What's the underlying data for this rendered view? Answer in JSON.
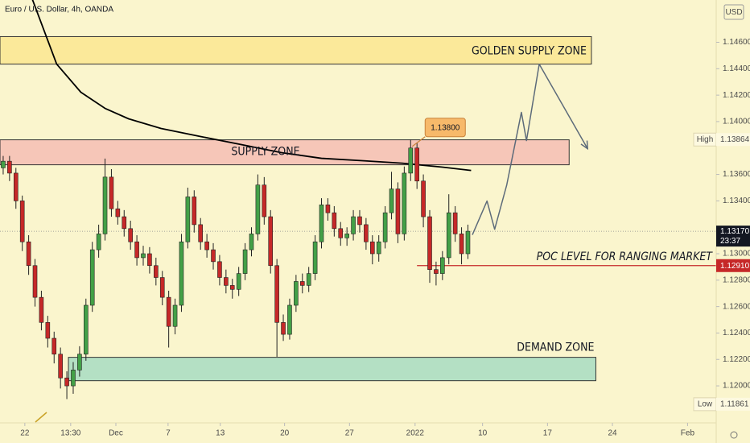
{
  "chart_data": {
    "type": "candlestick",
    "title": "Euro / U.S. Dollar, 4h, OANDA",
    "currency": "USD",
    "ylim": [
      1.1172,
      1.1492
    ],
    "yticks": [
      {
        "value": 1.146,
        "label": "1.14600"
      },
      {
        "value": 1.144,
        "label": "1.14400"
      },
      {
        "value": 1.142,
        "label": "1.14200"
      },
      {
        "value": 1.14,
        "label": "1.14000"
      },
      {
        "value": 1.136,
        "label": "1.13600"
      },
      {
        "value": 1.134,
        "label": "1.13400"
      },
      {
        "value": 1.13,
        "label": "1.13000"
      },
      {
        "value": 1.128,
        "label": "1.12800"
      },
      {
        "value": 1.126,
        "label": "1.12600"
      },
      {
        "value": 1.124,
        "label": "1.12400"
      },
      {
        "value": 1.122,
        "label": "1.12200"
      },
      {
        "value": 1.12,
        "label": "1.12000"
      }
    ],
    "xlim": [
      -0.5,
      112
    ],
    "xticks": [
      {
        "value": 3.4,
        "label": "22"
      },
      {
        "value": 10.6,
        "label": "13:30"
      },
      {
        "value": 17.7,
        "label": "Dec"
      },
      {
        "value": 25.9,
        "label": "7"
      },
      {
        "value": 34.1,
        "label": "13"
      },
      {
        "value": 44.2,
        "label": "20"
      },
      {
        "value": 54.4,
        "label": "27"
      },
      {
        "value": 64.7,
        "label": "2022"
      },
      {
        "value": 75.3,
        "label": "10"
      },
      {
        "value": 85.5,
        "label": "17"
      },
      {
        "value": 95.7,
        "label": "24"
      },
      {
        "value": 107.5,
        "label": "Feb"
      }
    ],
    "grid": false,
    "up_color": "#43a047",
    "down_color": "#c62828",
    "candles": {
      "open": [
        1.1365,
        1.137,
        1.1361,
        1.134,
        1.1309,
        1.1291,
        1.1267,
        1.1248,
        1.1236,
        1.1224,
        1.1206,
        1.12,
        1.1212,
        1.1224,
        1.1261,
        1.1303,
        1.1315,
        1.1358,
        1.1334,
        1.1328,
        1.1319,
        1.1309,
        1.1297,
        1.13,
        1.1291,
        1.1282,
        1.1267,
        1.1245,
        1.1261,
        1.1309,
        1.1343,
        1.1322,
        1.1309,
        1.1303,
        1.1294,
        1.1282,
        1.1276,
        1.1273,
        1.1285,
        1.1303,
        1.1315,
        1.1352,
        1.1328,
        1.1291,
        1.1248,
        1.1239,
        1.1261,
        1.1279,
        1.1276,
        1.1285,
        1.1309,
        1.1337,
        1.1331,
        1.1319,
        1.1312,
        1.1315,
        1.1328,
        1.1322,
        1.1309,
        1.13,
        1.1309,
        1.1331,
        1.1349,
        1.1315,
        1.1361,
        1.138,
        1.1355,
        1.1328,
        1.1288,
        1.1285,
        1.1297,
        1.1331,
        1.1315,
        1.13
      ],
      "high": [
        1.1374,
        1.1374,
        1.1365,
        1.1344,
        1.1314,
        1.1296,
        1.1272,
        1.1253,
        1.1241,
        1.1229,
        1.1211,
        1.1218,
        1.123,
        1.1266,
        1.1309,
        1.1322,
        1.1372,
        1.1364,
        1.134,
        1.1333,
        1.1325,
        1.1314,
        1.1306,
        1.1305,
        1.1297,
        1.1287,
        1.1272,
        1.1266,
        1.1315,
        1.135,
        1.1348,
        1.1327,
        1.1315,
        1.1308,
        1.1299,
        1.1288,
        1.1281,
        1.129,
        1.1308,
        1.132,
        1.136,
        1.1358,
        1.1333,
        1.1296,
        1.1254,
        1.1266,
        1.1284,
        1.1285,
        1.129,
        1.1314,
        1.1342,
        1.1342,
        1.1336,
        1.1324,
        1.132,
        1.1333,
        1.1333,
        1.1327,
        1.1314,
        1.1314,
        1.1336,
        1.1362,
        1.1354,
        1.1366,
        1.13864,
        1.1384,
        1.136,
        1.1333,
        1.1294,
        1.1302,
        1.1345,
        1.1336,
        1.132,
        1.1322
      ],
      "low": [
        1.136,
        1.1355,
        1.1334,
        1.1302,
        1.1284,
        1.126,
        1.1242,
        1.1229,
        1.1217,
        1.1198,
        1.119,
        1.1194,
        1.1207,
        1.1219,
        1.1256,
        1.1297,
        1.131,
        1.1328,
        1.1322,
        1.1313,
        1.1303,
        1.1291,
        1.1291,
        1.1285,
        1.1276,
        1.1261,
        1.1229,
        1.1239,
        1.1256,
        1.1304,
        1.1316,
        1.1303,
        1.1297,
        1.1288,
        1.1276,
        1.127,
        1.1266,
        1.1268,
        1.128,
        1.1298,
        1.131,
        1.1322,
        1.1285,
        1.1222,
        1.1234,
        1.1235,
        1.1256,
        1.127,
        1.1271,
        1.128,
        1.1304,
        1.1325,
        1.1313,
        1.1306,
        1.1306,
        1.131,
        1.1316,
        1.1303,
        1.1292,
        1.1294,
        1.1304,
        1.1326,
        1.1308,
        1.131,
        1.1355,
        1.1349,
        1.132,
        1.1278,
        1.1276,
        1.128,
        1.1292,
        1.1309,
        1.1292,
        1.1296
      ],
      "close": [
        1.137,
        1.1361,
        1.134,
        1.1309,
        1.1291,
        1.1267,
        1.1248,
        1.1236,
        1.1224,
        1.1206,
        1.12,
        1.1212,
        1.1224,
        1.1261,
        1.1303,
        1.1315,
        1.1358,
        1.1334,
        1.1328,
        1.1319,
        1.1309,
        1.1297,
        1.13,
        1.1291,
        1.1282,
        1.1267,
        1.1245,
        1.1261,
        1.1309,
        1.1343,
        1.1322,
        1.1309,
        1.1303,
        1.1294,
        1.1282,
        1.1276,
        1.1273,
        1.1285,
        1.1303,
        1.1315,
        1.1352,
        1.1328,
        1.1291,
        1.1248,
        1.1239,
        1.1261,
        1.1279,
        1.1276,
        1.1285,
        1.1309,
        1.1337,
        1.1331,
        1.1319,
        1.1312,
        1.1315,
        1.1328,
        1.1322,
        1.1309,
        1.13,
        1.1309,
        1.1331,
        1.1349,
        1.1315,
        1.1361,
        1.138,
        1.1355,
        1.1328,
        1.1288,
        1.1285,
        1.1297,
        1.1331,
        1.1315,
        1.13,
        1.1317
      ]
    },
    "moving_average": {
      "color": "#000000",
      "x": [
        4.6,
        8.4,
        12.2,
        16,
        19.7,
        24.8,
        31,
        37.4,
        43.7,
        50,
        56.4,
        62.7,
        69,
        73.5
      ],
      "values": [
        1.14923,
        1.14435,
        1.14222,
        1.141,
        1.14021,
        1.13948,
        1.13887,
        1.13826,
        1.13765,
        1.13722,
        1.13704,
        1.13685,
        1.13655,
        1.1363
      ]
    },
    "projection": {
      "color": "#5d6b7a",
      "x": [
        73.7,
        76,
        77.2,
        79.1,
        81.4,
        82.2,
        84.2,
        91.8
      ],
      "values": [
        1.13143,
        1.13399,
        1.13185,
        1.13521,
        1.1407,
        1.13856,
        1.14435,
        1.13795
      ]
    },
    "zones": [
      {
        "label": "GOLDEN SUPPLY ZONE",
        "top": 1.14643,
        "bottom": 1.14435,
        "x0": -0.5,
        "x1": 92.4,
        "color": "#fbe99a",
        "border": "#333333"
      },
      {
        "label": "SUPPLY ZONE",
        "top": 1.13862,
        "bottom": 1.13673,
        "x0": -0.5,
        "x1": 88.9,
        "color": "#f6c6b8",
        "border": "#333333"
      },
      {
        "label": "DEMAND ZONE",
        "top": 1.12216,
        "bottom": 1.12039,
        "x0": 10.25,
        "x1": 93.1,
        "color": "#b4e0c4",
        "border": "#333333"
      }
    ],
    "poc": {
      "label": "POC LEVEL FOR RANGING MARKET",
      "value": 1.1291,
      "price_label": "1.12910",
      "x0": 65,
      "color": "#c62828"
    },
    "callout": {
      "value": 1.138,
      "label": "1.13800",
      "x": 64
    },
    "last_price": {
      "value": 1.1317,
      "label": "1.13170",
      "countdown": "23:37"
    },
    "high": {
      "name": "High",
      "value": 1.13864,
      "label": "1.13864"
    },
    "low": {
      "name": "Low",
      "value": 1.11861,
      "label": "1.11861"
    }
  }
}
